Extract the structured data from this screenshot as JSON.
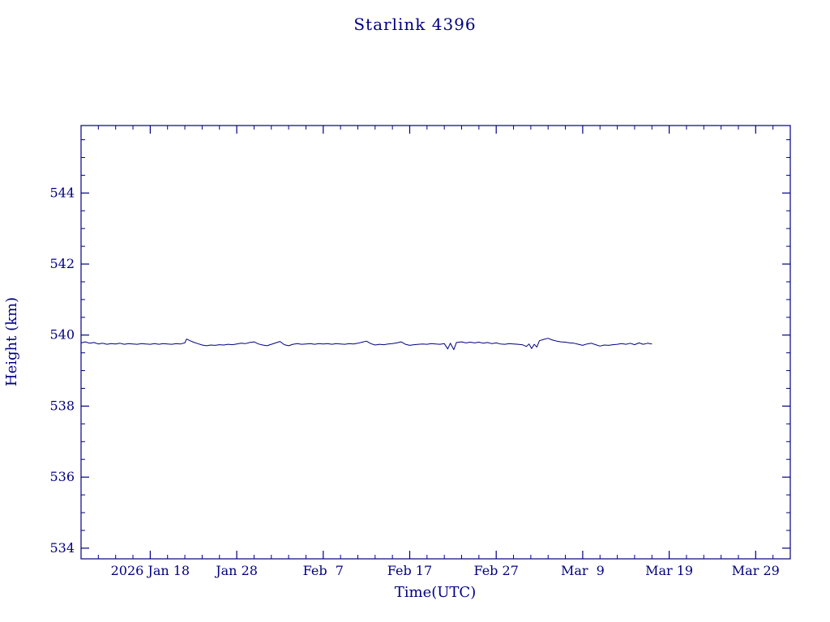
{
  "page": {
    "background": "#ffffff"
  },
  "chart_data": {
    "type": "line",
    "title": "Starlink 4396",
    "xlabel": "Time(UTC)",
    "ylabel": "Height (km)",
    "line_color": "#000080",
    "axis_color": "#000080",
    "grid": false,
    "legend": "none",
    "x_unit": "days since 2026-01-10 (UTC)",
    "xlim": [
      0,
      82
    ],
    "ylim": [
      533.7,
      545.9
    ],
    "y_ticks": {
      "major": [
        534,
        536,
        538,
        540,
        542,
        544
      ],
      "minor_step": 0.5
    },
    "x_ticks": {
      "major": [
        {
          "day": 8,
          "label": "2026 Jan 18"
        },
        {
          "day": 18,
          "label": "Jan 28"
        },
        {
          "day": 28,
          "label": "Feb  7"
        },
        {
          "day": 38,
          "label": "Feb 17"
        },
        {
          "day": 48,
          "label": "Feb 27"
        },
        {
          "day": 58,
          "label": "Mar  9"
        },
        {
          "day": 68,
          "label": "Mar 19"
        },
        {
          "day": 78,
          "label": "Mar 29"
        }
      ],
      "minor_step": 2
    },
    "series": [
      {
        "name": "height_km",
        "points": [
          [
            0,
            539.78
          ],
          [
            0.5,
            539.81
          ],
          [
            1,
            539.77
          ],
          [
            1.5,
            539.79
          ],
          [
            2,
            539.75
          ],
          [
            2.5,
            539.77
          ],
          [
            3,
            539.74
          ],
          [
            3.5,
            539.76
          ],
          [
            4,
            539.75
          ],
          [
            4.5,
            539.77
          ],
          [
            5,
            539.74
          ],
          [
            5.5,
            539.76
          ],
          [
            6,
            539.75
          ],
          [
            6.5,
            539.74
          ],
          [
            7,
            539.76
          ],
          [
            7.5,
            539.75
          ],
          [
            8,
            539.74
          ],
          [
            8.5,
            539.76
          ],
          [
            9,
            539.74
          ],
          [
            9.5,
            539.76
          ],
          [
            10,
            539.75
          ],
          [
            10.5,
            539.74
          ],
          [
            11,
            539.76
          ],
          [
            11.5,
            539.75
          ],
          [
            12,
            539.78
          ],
          [
            12.2,
            539.89
          ],
          [
            12.6,
            539.84
          ],
          [
            13,
            539.8
          ],
          [
            13.5,
            539.76
          ],
          [
            14,
            539.72
          ],
          [
            14.5,
            539.7
          ],
          [
            15,
            539.72
          ],
          [
            15.5,
            539.71
          ],
          [
            16,
            539.73
          ],
          [
            16.5,
            539.72
          ],
          [
            17,
            539.74
          ],
          [
            17.5,
            539.73
          ],
          [
            18,
            539.75
          ],
          [
            18.5,
            539.77
          ],
          [
            19,
            539.76
          ],
          [
            19.5,
            539.79
          ],
          [
            20,
            539.81
          ],
          [
            20.5,
            539.75
          ],
          [
            21,
            539.72
          ],
          [
            21.5,
            539.7
          ],
          [
            22,
            539.74
          ],
          [
            22.5,
            539.78
          ],
          [
            23,
            539.82
          ],
          [
            23.5,
            539.73
          ],
          [
            24,
            539.7
          ],
          [
            24.5,
            539.74
          ],
          [
            25,
            539.76
          ],
          [
            25.5,
            539.74
          ],
          [
            26,
            539.75
          ],
          [
            26.5,
            539.76
          ],
          [
            27,
            539.74
          ],
          [
            27.5,
            539.76
          ],
          [
            28,
            539.75
          ],
          [
            28.5,
            539.76
          ],
          [
            29,
            539.74
          ],
          [
            29.5,
            539.76
          ],
          [
            30,
            539.75
          ],
          [
            30.5,
            539.74
          ],
          [
            31,
            539.76
          ],
          [
            31.5,
            539.75
          ],
          [
            32,
            539.77
          ],
          [
            32.5,
            539.8
          ],
          [
            33,
            539.83
          ],
          [
            33.5,
            539.76
          ],
          [
            34,
            539.72
          ],
          [
            34.5,
            539.74
          ],
          [
            35,
            539.73
          ],
          [
            35.5,
            539.75
          ],
          [
            36,
            539.76
          ],
          [
            36.5,
            539.78
          ],
          [
            37,
            539.81
          ],
          [
            37.5,
            539.74
          ],
          [
            38,
            539.71
          ],
          [
            38.5,
            539.73
          ],
          [
            39,
            539.74
          ],
          [
            39.5,
            539.75
          ],
          [
            40,
            539.74
          ],
          [
            40.5,
            539.76
          ],
          [
            41,
            539.75
          ],
          [
            41.5,
            539.74
          ],
          [
            42,
            539.76
          ],
          [
            42.4,
            539.61
          ],
          [
            42.7,
            539.77
          ],
          [
            43.1,
            539.59
          ],
          [
            43.4,
            539.79
          ],
          [
            44,
            539.81
          ],
          [
            44.5,
            539.78
          ],
          [
            45,
            539.8
          ],
          [
            45.5,
            539.78
          ],
          [
            46,
            539.8
          ],
          [
            46.5,
            539.77
          ],
          [
            47,
            539.79
          ],
          [
            47.5,
            539.76
          ],
          [
            48,
            539.78
          ],
          [
            48.5,
            539.75
          ],
          [
            49,
            539.74
          ],
          [
            49.5,
            539.76
          ],
          [
            50,
            539.75
          ],
          [
            50.5,
            539.74
          ],
          [
            51,
            539.73
          ],
          [
            51.5,
            539.68
          ],
          [
            51.8,
            539.75
          ],
          [
            52.1,
            539.62
          ],
          [
            52.4,
            539.74
          ],
          [
            52.7,
            539.66
          ],
          [
            53,
            539.84
          ],
          [
            53.5,
            539.88
          ],
          [
            54,
            539.91
          ],
          [
            54.5,
            539.86
          ],
          [
            55,
            539.83
          ],
          [
            55.5,
            539.81
          ],
          [
            56,
            539.8
          ],
          [
            56.5,
            539.78
          ],
          [
            57,
            539.77
          ],
          [
            57.5,
            539.74
          ],
          [
            58,
            539.71
          ],
          [
            58.5,
            539.75
          ],
          [
            59,
            539.77
          ],
          [
            59.5,
            539.73
          ],
          [
            60,
            539.69
          ],
          [
            60.5,
            539.72
          ],
          [
            61,
            539.71
          ],
          [
            61.5,
            539.73
          ],
          [
            62,
            539.74
          ],
          [
            62.5,
            539.76
          ],
          [
            63,
            539.74
          ],
          [
            63.5,
            539.77
          ],
          [
            64,
            539.73
          ],
          [
            64.5,
            539.78
          ],
          [
            65,
            539.74
          ],
          [
            65.5,
            539.77
          ],
          [
            66,
            539.75
          ]
        ]
      }
    ]
  }
}
